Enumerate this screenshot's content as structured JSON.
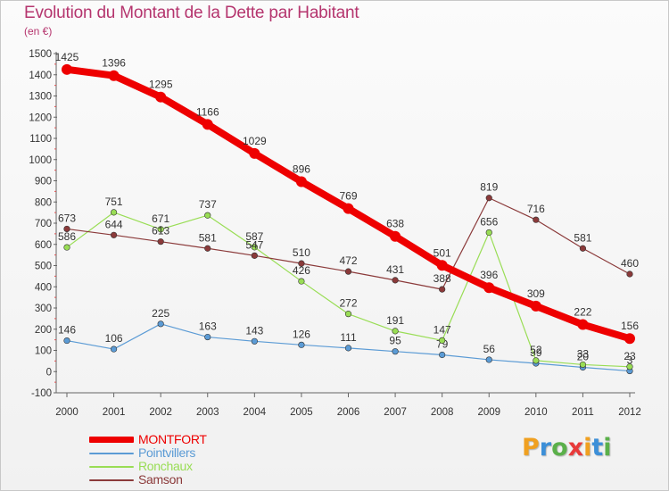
{
  "chart_data": {
    "type": "line",
    "title": "Evolution du Montant de la Dette par Habitant",
    "subtitle": "(en €)",
    "xlabel": "",
    "ylabel": "",
    "x": [
      "2000",
      "2001",
      "2002",
      "2003",
      "2004",
      "2005",
      "2006",
      "2007",
      "2008",
      "2009",
      "2010",
      "2011",
      "2012"
    ],
    "ylim": [
      -100,
      1500
    ],
    "yticks": [
      -100,
      0,
      100,
      200,
      300,
      400,
      500,
      600,
      700,
      800,
      900,
      1000,
      1100,
      1200,
      1300,
      1400,
      1500
    ],
    "grid": false,
    "legend_position": "bottom-left",
    "series": [
      {
        "name": "MONTFORT",
        "color": "#ee0000",
        "values": [
          1425,
          1396,
          1295,
          1166,
          1029,
          896,
          769,
          638,
          501,
          396,
          309,
          222,
          156
        ]
      },
      {
        "name": "Pointvillers",
        "color": "#5b9bd5",
        "values": [
          146,
          106,
          225,
          163,
          143,
          126,
          111,
          95,
          79,
          56,
          39,
          20,
          3
        ]
      },
      {
        "name": "Ronchaux",
        "color": "#99dd55",
        "values": [
          586,
          751,
          671,
          737,
          587,
          426,
          272,
          191,
          147,
          656,
          52,
          33,
          23
        ]
      },
      {
        "name": "Samson",
        "color": "#8b3a3a",
        "values": [
          673,
          644,
          613,
          581,
          547,
          510,
          472,
          431,
          388,
          819,
          716,
          581,
          460
        ]
      }
    ]
  },
  "logo": {
    "text": "Proxiti",
    "letters": [
      {
        "ch": "P",
        "color": "#f0a020"
      },
      {
        "ch": "r",
        "color": "#3c8fd8"
      },
      {
        "ch": "o",
        "color": "#5bb04a"
      },
      {
        "ch": "x",
        "color": "#e83a3a"
      },
      {
        "ch": "i",
        "color": "#f0a020"
      },
      {
        "ch": "t",
        "color": "#3c8fd8"
      },
      {
        "ch": "i",
        "color": "#5bb04a"
      }
    ]
  }
}
